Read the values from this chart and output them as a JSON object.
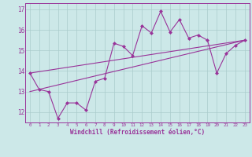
{
  "xlabel": "Windchill (Refroidissement éolien,°C)",
  "background_color": "#cce8e8",
  "grid_color": "#aacccc",
  "line_color": "#993399",
  "xlim": [
    -0.5,
    23.5
  ],
  "ylim": [
    11.5,
    17.3
  ],
  "yticks": [
    12,
    13,
    14,
    15,
    16,
    17
  ],
  "xticks": [
    0,
    1,
    2,
    3,
    4,
    5,
    6,
    7,
    8,
    9,
    10,
    11,
    12,
    13,
    14,
    15,
    16,
    17,
    18,
    19,
    20,
    21,
    22,
    23
  ],
  "line1_x": [
    0,
    1,
    2,
    3,
    4,
    5,
    6,
    7,
    8,
    9,
    10,
    11,
    12,
    13,
    14,
    15,
    16,
    17,
    18,
    19,
    20,
    21,
    22,
    23
  ],
  "line1_y": [
    13.9,
    13.1,
    13.0,
    11.7,
    12.45,
    12.45,
    12.1,
    13.5,
    13.65,
    15.35,
    15.2,
    14.75,
    16.2,
    15.85,
    16.9,
    15.9,
    16.5,
    15.6,
    15.75,
    15.5,
    13.9,
    14.85,
    15.25,
    15.5
  ],
  "line2_x": [
    0,
    23
  ],
  "line2_y": [
    13.0,
    15.5
  ],
  "line3_x": [
    0,
    23
  ],
  "line3_y": [
    13.9,
    15.5
  ]
}
